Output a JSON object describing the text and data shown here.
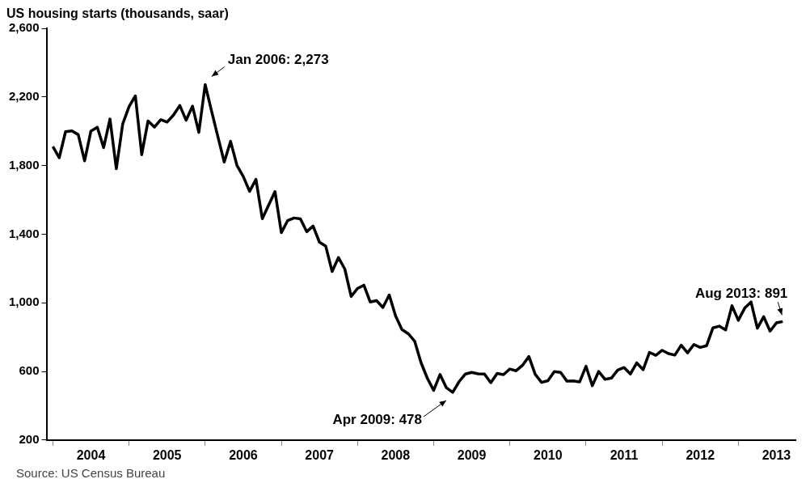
{
  "chart_data": {
    "type": "line",
    "title": "US housing starts (thousands, saar)",
    "x": [
      "2004-01",
      "2004-02",
      "2004-03",
      "2004-04",
      "2004-05",
      "2004-06",
      "2004-07",
      "2004-08",
      "2004-09",
      "2004-10",
      "2004-11",
      "2004-12",
      "2005-01",
      "2005-02",
      "2005-03",
      "2005-04",
      "2005-05",
      "2005-06",
      "2005-07",
      "2005-08",
      "2005-09",
      "2005-10",
      "2005-11",
      "2005-12",
      "2006-01",
      "2006-02",
      "2006-03",
      "2006-04",
      "2006-05",
      "2006-06",
      "2006-07",
      "2006-08",
      "2006-09",
      "2006-10",
      "2006-11",
      "2006-12",
      "2007-01",
      "2007-02",
      "2007-03",
      "2007-04",
      "2007-05",
      "2007-06",
      "2007-07",
      "2007-08",
      "2007-09",
      "2007-10",
      "2007-11",
      "2007-12",
      "2008-01",
      "2008-02",
      "2008-03",
      "2008-04",
      "2008-05",
      "2008-06",
      "2008-07",
      "2008-08",
      "2008-09",
      "2008-10",
      "2008-11",
      "2008-12",
      "2009-01",
      "2009-02",
      "2009-03",
      "2009-04",
      "2009-05",
      "2009-06",
      "2009-07",
      "2009-08",
      "2009-09",
      "2009-10",
      "2009-11",
      "2009-12",
      "2010-01",
      "2010-02",
      "2010-03",
      "2010-04",
      "2010-05",
      "2010-06",
      "2010-07",
      "2010-08",
      "2010-09",
      "2010-10",
      "2010-11",
      "2010-12",
      "2011-01",
      "2011-02",
      "2011-03",
      "2011-04",
      "2011-05",
      "2011-06",
      "2011-07",
      "2011-08",
      "2011-09",
      "2011-10",
      "2011-11",
      "2011-12",
      "2012-01",
      "2012-02",
      "2012-03",
      "2012-04",
      "2012-05",
      "2012-06",
      "2012-07",
      "2012-08",
      "2012-09",
      "2012-10",
      "2012-11",
      "2012-12",
      "2013-01",
      "2013-02",
      "2013-03",
      "2013-04",
      "2013-05",
      "2013-06",
      "2013-07",
      "2013-08"
    ],
    "series": [
      {
        "color": "#000000",
        "values": [
          1911,
          1846,
          1998,
          2003,
          1981,
          1828,
          2002,
          2024,
          1905,
          2072,
          1782,
          2042,
          2144,
          2207,
          1864,
          2061,
          2025,
          2068,
          2054,
          2095,
          2151,
          2065,
          2147,
          1994,
          2273,
          2119,
          1969,
          1821,
          1942,
          1802,
          1737,
          1650,
          1720,
          1491,
          1570,
          1649,
          1409,
          1480,
          1495,
          1490,
          1415,
          1448,
          1354,
          1330,
          1183,
          1264,
          1197,
          1037,
          1084,
          1103,
          1005,
          1013,
          973,
          1046,
          923,
          844,
          820,
          777,
          652,
          560,
          490,
          582,
          505,
          478,
          540,
          585,
          594,
          586,
          585,
          534,
          588,
          581,
          614,
          604,
          636,
          687,
          583,
          536,
          546,
          599,
          594,
          543,
          545,
          539,
          630,
          517,
          600,
          554,
          561,
          608,
          623,
          585,
          650,
          610,
          711,
          694,
          723,
          704,
          695,
          753,
          708,
          757,
          740,
          750,
          854,
          864,
          842,
          983,
          898,
          969,
          1005,
          852,
          919,
          835,
          883,
          891
        ]
      }
    ],
    "xlim": [
      "2003-12",
      "2013-10"
    ],
    "xticks": [
      {
        "value": "2004-01",
        "label": null
      },
      {
        "value": "2004-07",
        "label": "2004"
      },
      {
        "value": "2005-01",
        "label": null
      },
      {
        "value": "2005-07",
        "label": "2005"
      },
      {
        "value": "2006-01",
        "label": null
      },
      {
        "value": "2006-07",
        "label": "2006"
      },
      {
        "value": "2007-01",
        "label": null
      },
      {
        "value": "2007-07",
        "label": "2007"
      },
      {
        "value": "2008-01",
        "label": null
      },
      {
        "value": "2008-07",
        "label": "2008"
      },
      {
        "value": "2009-01",
        "label": null
      },
      {
        "value": "2009-07",
        "label": "2009"
      },
      {
        "value": "2010-01",
        "label": null
      },
      {
        "value": "2010-07",
        "label": "2010"
      },
      {
        "value": "2011-01",
        "label": null
      },
      {
        "value": "2011-07",
        "label": "2011"
      },
      {
        "value": "2012-01",
        "label": null
      },
      {
        "value": "2012-07",
        "label": "2012"
      },
      {
        "value": "2013-01",
        "label": null
      },
      {
        "value": "2013-07",
        "label": "2013"
      }
    ],
    "ylim": [
      200,
      2600
    ],
    "yticks": [
      {
        "value": 200,
        "label": "200"
      },
      {
        "value": 600,
        "label": "600"
      },
      {
        "value": 1000,
        "label": "1,000"
      },
      {
        "value": 1400,
        "label": "1,400"
      },
      {
        "value": 1800,
        "label": "1,800"
      },
      {
        "value": 2200,
        "label": "2,200"
      },
      {
        "value": 2600,
        "label": "2,600"
      }
    ],
    "grid": false,
    "legend": false,
    "marker": "none",
    "line_style": "solid",
    "annotations": [
      {
        "text": "Jan 2006: 2,273",
        "x": "2006-01",
        "y": 2273
      },
      {
        "text": "Apr 2009: 478",
        "x": "2009-04",
        "y": 478
      },
      {
        "text": "Aug 2013: 891",
        "x": "2013-08",
        "y": 891
      },
      "Source:  US Census Bureau"
    ]
  }
}
